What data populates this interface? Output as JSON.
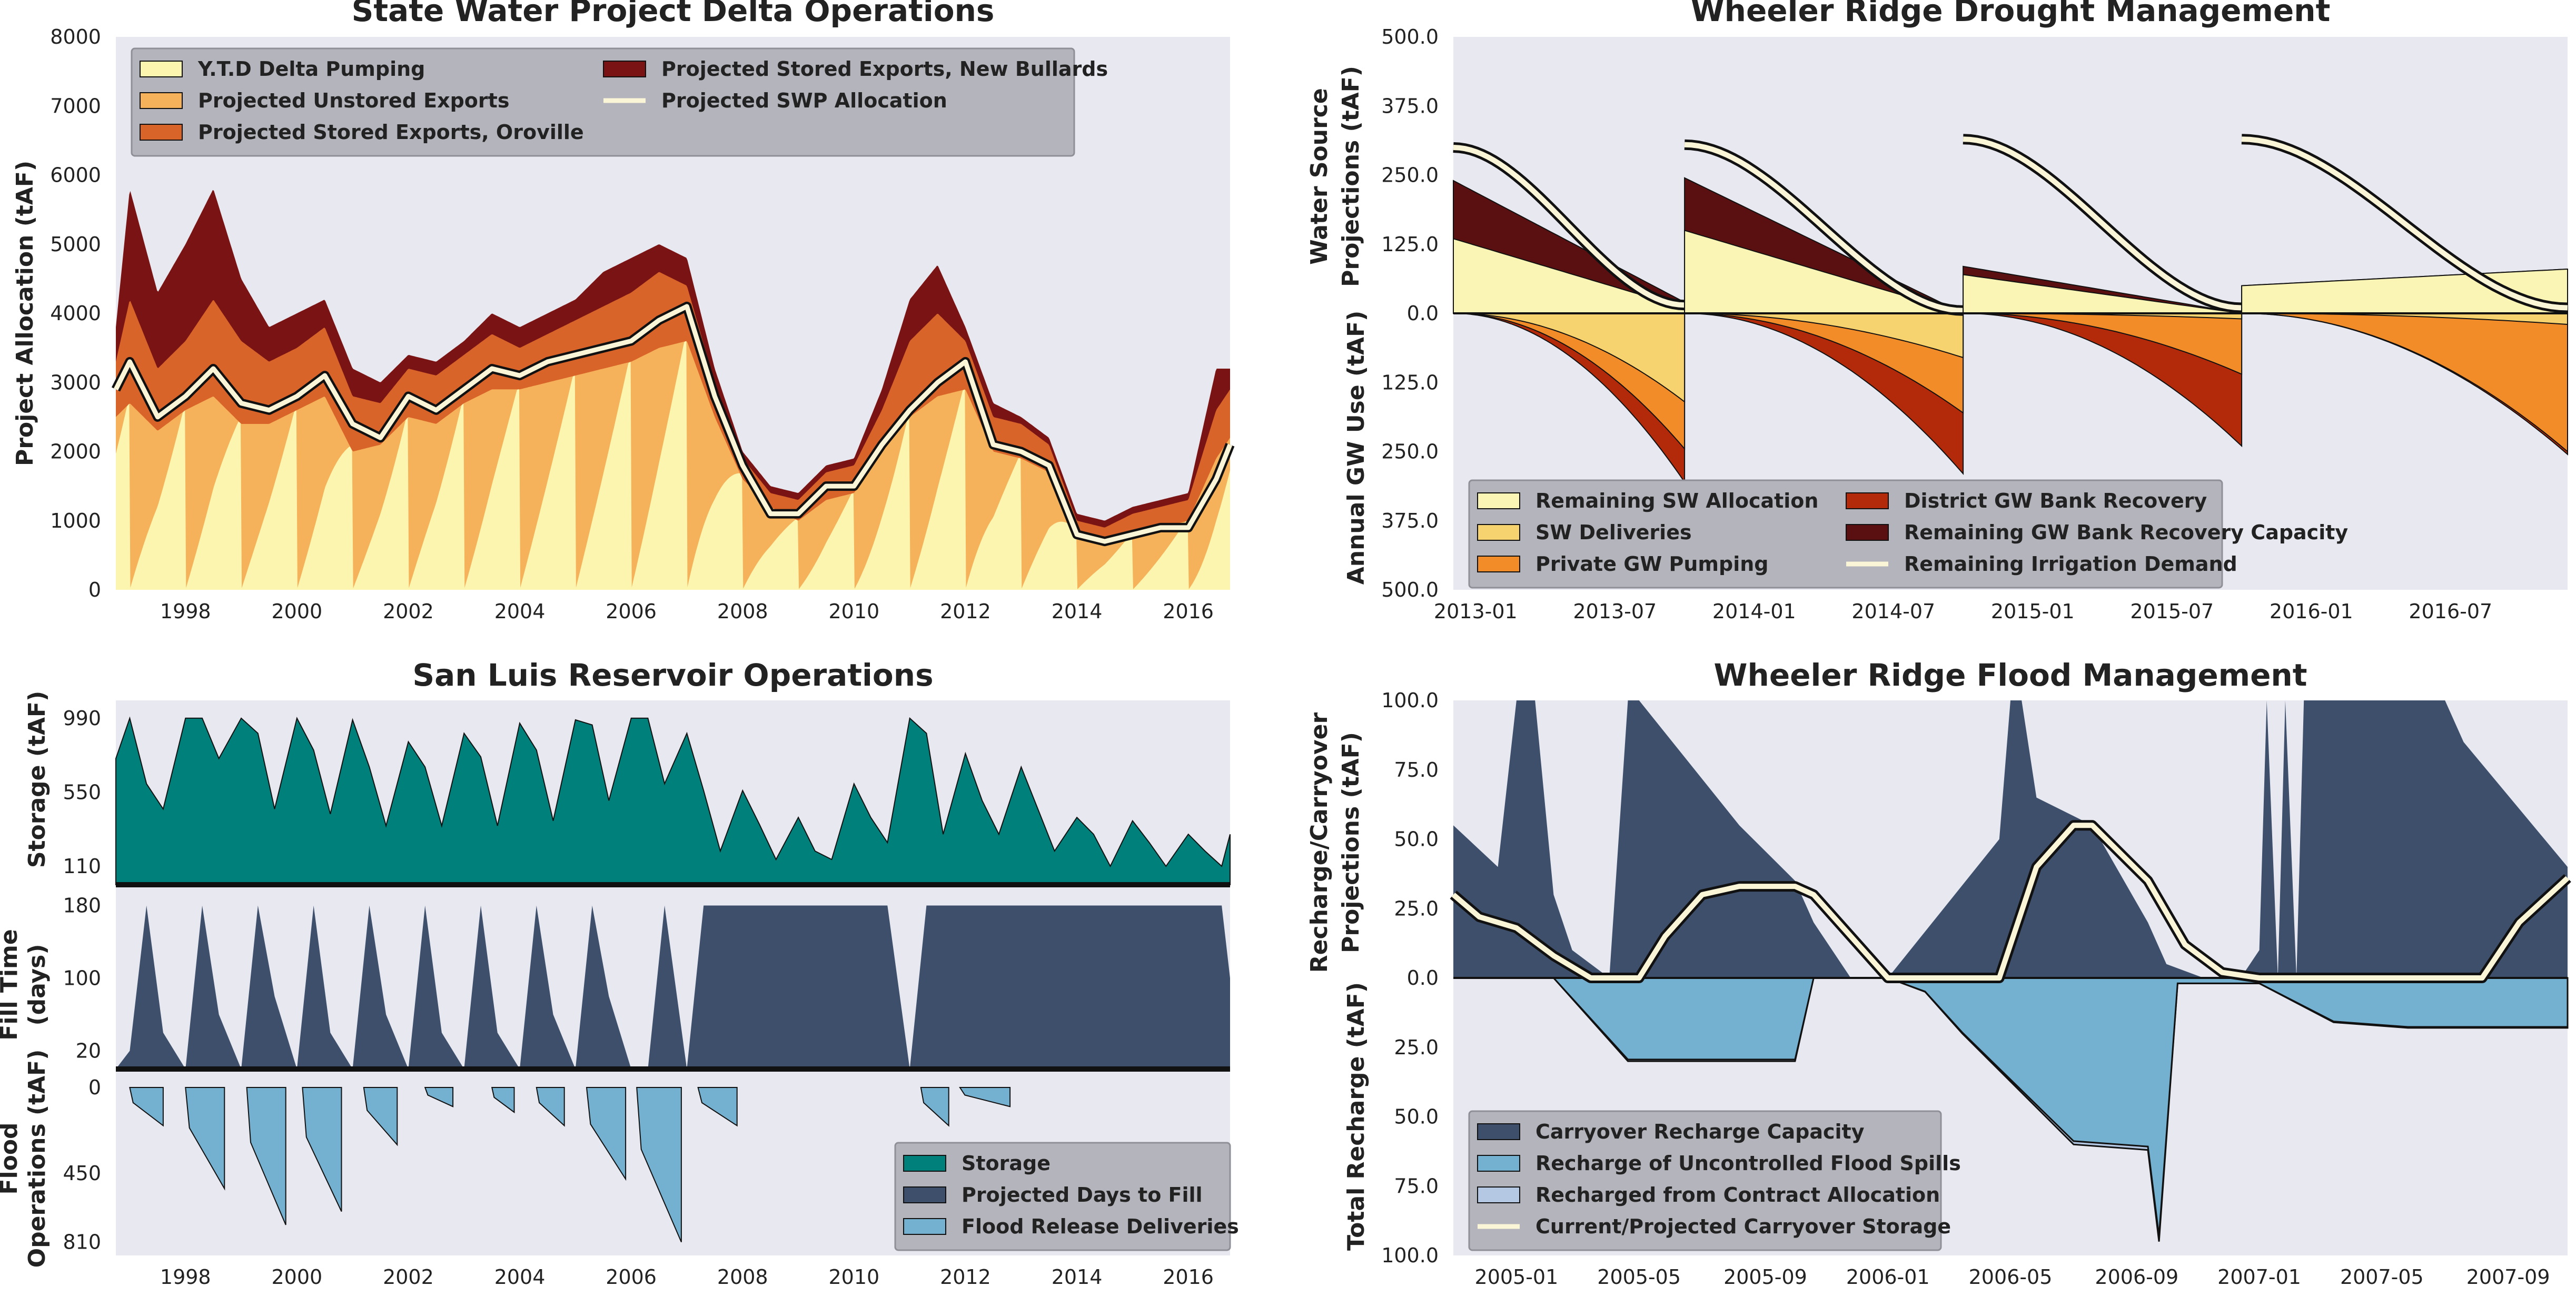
{
  "colors": {
    "bg": "#e8e8f1",
    "ytd_pumping": "#fcf5b0",
    "unstored": "#f5b25a",
    "stored_oroville": "#d9642a",
    "stored_bullards": "#7a1414",
    "allocation": "#fbf5d7",
    "sw_alloc": "#fbf5b5",
    "sw_deliv": "#f7d36f",
    "private_gw": "#f28c28",
    "district_gw": "#b22a0a",
    "gw_bank_cap": "#5a1010",
    "storage": "#00807a",
    "days_to_fill": "#3d4f6b",
    "flood_release": "#74b0d0",
    "carryover_cap": "#3d4f6b",
    "flood_spills": "#74b0d0",
    "contract_recharge": "#b5c8e3"
  },
  "chart_data": [
    {
      "id": "delta",
      "type": "area",
      "title": "State Water Project Delta Operations",
      "ylabel": "Project Allocation (tAF)",
      "ylim": [
        0,
        8000
      ],
      "yticks": [
        "0",
        "1000",
        "2000",
        "3000",
        "4000",
        "5000",
        "6000",
        "7000",
        "8000"
      ],
      "xlim": [
        1996.75,
        2016.75
      ],
      "xticks": [
        "1998",
        "2000",
        "2002",
        "2004",
        "2006",
        "2008",
        "2010",
        "2012",
        "2014",
        "2016"
      ],
      "legend": [
        {
          "label": "Y.T.D Delta Pumping",
          "color": "ytd_pumping"
        },
        {
          "label": "Projected Unstored Exports",
          "color": "unstored"
        },
        {
          "label": "Projected Stored Exports, Oroville",
          "color": "stored_oroville"
        },
        {
          "label": "Projected Stored Exports, New Bullards",
          "color": "stored_bullards"
        },
        {
          "label": "Projected SWP Allocation",
          "color": "allocation"
        }
      ],
      "x": [
        1996.75,
        1997.0,
        1997.5,
        1998.0,
        1998.5,
        1999.0,
        1999.5,
        2000.0,
        2000.5,
        2001.0,
        2001.5,
        2002.0,
        2002.5,
        2003.0,
        2003.5,
        2004.0,
        2004.5,
        2005.0,
        2005.5,
        2006.0,
        2006.5,
        2007.0,
        2007.5,
        2008.0,
        2008.5,
        2009.0,
        2009.5,
        2010.0,
        2010.5,
        2011.0,
        2011.5,
        2012.0,
        2012.5,
        2013.0,
        2013.5,
        2014.0,
        2014.5,
        2015.0,
        2015.5,
        2016.0,
        2016.5,
        2016.75
      ],
      "allocation": [
        2900,
        3300,
        2500,
        2800,
        3200,
        2700,
        2600,
        2800,
        3100,
        2400,
        2200,
        2800,
        2600,
        2900,
        3200,
        3100,
        3300,
        3400,
        3500,
        3600,
        3900,
        4100,
        2800,
        1800,
        1100,
        1100,
        1500,
        1500,
        2100,
        2600,
        3000,
        3300,
        2100,
        2000,
        1800,
        800,
        700,
        800,
        900,
        900,
        1600,
        2100
      ],
      "unstored_top": [
        2500,
        2700,
        2300,
        2600,
        2800,
        2400,
        2400,
        2600,
        2800,
        2000,
        2100,
        2500,
        2400,
        2700,
        2900,
        2900,
        3000,
        3100,
        3200,
        3300,
        3500,
        3600,
        2500,
        1600,
        1200,
        1000,
        1300,
        1400,
        2000,
        2500,
        2800,
        2900,
        2000,
        1900,
        1700,
        800,
        700,
        800,
        900,
        1000,
        1900,
        2200
      ],
      "oroville_top": [
        3300,
        4200,
        3200,
        3600,
        4200,
        3600,
        3300,
        3500,
        3800,
        2800,
        2700,
        3200,
        3100,
        3400,
        3700,
        3500,
        3700,
        3900,
        4100,
        4300,
        4600,
        4400,
        3000,
        1900,
        1400,
        1300,
        1700,
        1800,
        2600,
        3600,
        4000,
        3600,
        2500,
        2400,
        2100,
        1000,
        900,
        1100,
        1200,
        1300,
        2600,
        2900
      ],
      "bullards_top": [
        3800,
        5800,
        4300,
        5000,
        5800,
        4500,
        3800,
        4000,
        4200,
        3200,
        3000,
        3400,
        3300,
        3600,
        4000,
        3800,
        4000,
        4200,
        4600,
        4800,
        5000,
        4800,
        3200,
        2000,
        1500,
        1400,
        1800,
        1900,
        2900,
        4200,
        4700,
        3800,
        2700,
        2500,
        2200,
        1100,
        1000,
        1200,
        1300,
        1400,
        3200,
        3200
      ]
    },
    {
      "id": "drought",
      "type": "area",
      "title": "Wheeler Ridge Drought Management",
      "ylabel_top": [
        "Water Source",
        "Projections (tAF)"
      ],
      "ylabel_bottom": "Annual GW Use (tAF)",
      "yticks_top": [
        "500.0",
        "375.0",
        "250.0",
        "125.0",
        "0.0"
      ],
      "yticks_bottom": [
        "125.0",
        "250.0",
        "375.0",
        "500.0"
      ],
      "ylim": [
        -500,
        500
      ],
      "xlim": [
        2012.92,
        2016.92
      ],
      "xticks": [
        "2013-01",
        "2013-07",
        "2014-01",
        "2014-07",
        "2015-01",
        "2015-07",
        "2016-01",
        "2016-07"
      ],
      "legend": [
        {
          "label": "Remaining SW Allocation",
          "color": "sw_alloc"
        },
        {
          "label": "SW Deliveries",
          "color": "sw_deliv"
        },
        {
          "label": "Private GW Pumping",
          "color": "private_gw"
        },
        {
          "label": "District GW Bank Recovery",
          "color": "district_gw"
        },
        {
          "label": "Remaining GW Bank Recovery Capacity",
          "color": "gw_bank_cap"
        },
        {
          "label": "Remaining Irrigation Demand",
          "color": "allocation"
        }
      ],
      "segments": [
        {
          "x0": 2012.92,
          "x1": 2013.75,
          "sw_top0": 135,
          "sw_top1": 10,
          "bank_top0": 240,
          "bank_top1": 20,
          "deliv_bot1": -160,
          "gw_bot1": -245,
          "dist_bot1": -305,
          "demand0": 300,
          "demand1": 15
        },
        {
          "x0": 2013.75,
          "x1": 2014.75,
          "sw_top0": 150,
          "sw_top1": 0,
          "bank_top0": 245,
          "bank_top1": 0,
          "deliv_bot1": -80,
          "gw_bot1": -180,
          "dist_bot1": -290,
          "demand0": 305,
          "demand1": 5
        },
        {
          "x0": 2014.75,
          "x1": 2015.75,
          "sw_top0": 70,
          "sw_top1": 0,
          "bank_top0": 85,
          "bank_top1": 0,
          "deliv_bot1": -10,
          "gw_bot1": -110,
          "dist_bot1": -240,
          "demand0": 315,
          "demand1": 10
        },
        {
          "x0": 2015.75,
          "x1": 2016.92,
          "sw_top0": 50,
          "sw_top1": 80,
          "bank_top0": 50,
          "bank_top1": 80,
          "deliv_bot1": -20,
          "gw_bot1": -250,
          "dist_bot1": -255,
          "demand0": 315,
          "demand1": 10
        }
      ]
    },
    {
      "id": "sanluis",
      "type": "area",
      "title": "San Luis Reservoir Operations",
      "ylabel_storage": "Storage (tAF)",
      "ylabel_fill": [
        "Fill Time",
        "(days)"
      ],
      "ylabel_flood": [
        "Flood",
        "Operations (tAF)"
      ],
      "yticks_storage": [
        "990",
        "550",
        "110"
      ],
      "yticks_fill": [
        "180",
        "100",
        "20"
      ],
      "yticks_flood": [
        "0",
        "450",
        "810"
      ],
      "xlim": [
        1996.75,
        2016.75
      ],
      "xticks": [
        "1998",
        "2000",
        "2002",
        "2004",
        "2006",
        "2008",
        "2010",
        "2012",
        "2014",
        "2016"
      ],
      "legend": [
        {
          "label": "Storage",
          "color": "storage"
        },
        {
          "label": "Projected Days to Fill",
          "color": "days_to_fill"
        },
        {
          "label": "Flood Release Deliveries",
          "color": "flood_release"
        }
      ],
      "storage_x": [
        1996.75,
        1997.0,
        1997.3,
        1997.6,
        1998.0,
        1998.3,
        1998.6,
        1999.0,
        1999.3,
        1999.6,
        2000.0,
        2000.3,
        2000.6,
        2001.0,
        2001.3,
        2001.6,
        2002.0,
        2002.3,
        2002.6,
        2003.0,
        2003.3,
        2003.6,
        2004.0,
        2004.3,
        2004.6,
        2005.0,
        2005.3,
        2005.6,
        2006.0,
        2006.3,
        2006.6,
        2007.0,
        2007.3,
        2007.6,
        2008.0,
        2008.3,
        2008.6,
        2009.0,
        2009.3,
        2009.6,
        2010.0,
        2010.3,
        2010.6,
        2011.0,
        2011.3,
        2011.6,
        2012.0,
        2012.3,
        2012.6,
        2013.0,
        2013.3,
        2013.6,
        2014.0,
        2014.3,
        2014.6,
        2015.0,
        2015.3,
        2015.6,
        2016.0,
        2016.3,
        2016.6,
        2016.75
      ],
      "storage_values": [
        750,
        990,
        600,
        450,
        990,
        990,
        750,
        990,
        900,
        450,
        990,
        800,
        420,
        980,
        700,
        350,
        850,
        700,
        350,
        900,
        760,
        350,
        960,
        800,
        380,
        980,
        950,
        500,
        990,
        990,
        600,
        900,
        560,
        200,
        560,
        360,
        150,
        400,
        200,
        150,
        600,
        400,
        250,
        990,
        900,
        300,
        780,
        500,
        300,
        700,
        450,
        200,
        400,
        300,
        110,
        380,
        250,
        110,
        300,
        200,
        110,
        300
      ],
      "fill_x": [
        1996.75,
        1997.0,
        1997.3,
        1997.6,
        1998.0,
        1998.3,
        1998.6,
        1999.0,
        1999.3,
        1999.6,
        2000.0,
        2000.3,
        2000.6,
        2001.0,
        2001.3,
        2001.6,
        2002.0,
        2002.3,
        2002.6,
        2003.0,
        2003.3,
        2003.6,
        2004.0,
        2004.3,
        2004.6,
        2005.0,
        2005.3,
        2005.6,
        2006.0,
        2006.3,
        2006.6,
        2007.0,
        2007.3,
        2007.6,
        2008.0,
        2008.3,
        2008.6,
        2009.0,
        2009.3,
        2009.6,
        2010.0,
        2010.3,
        2010.6,
        2011.0,
        2011.3,
        2011.6,
        2012.0,
        2012.3,
        2012.6,
        2013.0,
        2013.3,
        2013.6,
        2014.0,
        2014.3,
        2014.6,
        2015.0,
        2015.3,
        2015.6,
        2016.0,
        2016.3,
        2016.6,
        2016.75
      ],
      "fill_values": [
        0,
        20,
        180,
        40,
        0,
        180,
        60,
        0,
        180,
        80,
        0,
        180,
        40,
        0,
        180,
        60,
        0,
        180,
        40,
        0,
        180,
        40,
        0,
        180,
        60,
        0,
        180,
        80,
        0,
        0,
        180,
        0,
        180,
        180,
        180,
        180,
        180,
        180,
        180,
        180,
        180,
        180,
        180,
        0,
        180,
        180,
        180,
        180,
        180,
        180,
        180,
        180,
        180,
        180,
        180,
        180,
        180,
        180,
        180,
        180,
        180,
        100
      ],
      "flood_events": [
        {
          "x0": 1997.0,
          "x1": 1997.6,
          "depth": 200
        },
        {
          "x0": 1998.0,
          "x1": 1998.7,
          "depth": 530
        },
        {
          "x0": 1999.1,
          "x1": 1999.8,
          "depth": 720
        },
        {
          "x0": 2000.1,
          "x1": 2000.8,
          "depth": 650
        },
        {
          "x0": 2001.2,
          "x1": 2001.8,
          "depth": 300
        },
        {
          "x0": 2002.3,
          "x1": 2002.8,
          "depth": 100
        },
        {
          "x0": 2003.5,
          "x1": 2003.9,
          "depth": 130
        },
        {
          "x0": 2004.3,
          "x1": 2004.8,
          "depth": 200
        },
        {
          "x0": 2005.2,
          "x1": 2005.9,
          "depth": 480
        },
        {
          "x0": 2006.1,
          "x1": 2006.9,
          "depth": 810
        },
        {
          "x0": 2007.2,
          "x1": 2007.9,
          "depth": 200
        },
        {
          "x0": 2011.2,
          "x1": 2011.7,
          "depth": 200
        },
        {
          "x0": 2011.9,
          "x1": 2012.8,
          "depth": 100
        }
      ]
    },
    {
      "id": "flood",
      "type": "area",
      "title": "Wheeler Ridge Flood Management",
      "ylabel_top": [
        "Recharge/Carryover",
        "Projections (tAF)"
      ],
      "ylabel_bottom": "Total Recharge (tAF)",
      "yticks_top": [
        "100.0",
        "75.0",
        "50.0",
        "25.0",
        "0.0"
      ],
      "yticks_bottom": [
        "25.0",
        "50.0",
        "75.0",
        "100.0"
      ],
      "ylim": [
        -100,
        100
      ],
      "xlim": [
        2004.83,
        2007.83
      ],
      "xticks": [
        "2005-01",
        "2005-05",
        "2005-09",
        "2006-01",
        "2006-05",
        "2006-09",
        "2007-01",
        "2007-05",
        "2007-09"
      ],
      "legend": [
        {
          "label": "Carryover Recharge Capacity",
          "color": "carryover_cap"
        },
        {
          "label": "Recharge of Uncontrolled Flood Spills",
          "color": "flood_spills"
        },
        {
          "label": "Recharged from Contract Allocation",
          "color": "contract_recharge"
        },
        {
          "label": "Current/Projected Carryover Storage",
          "color": "allocation"
        }
      ],
      "cap_x": [
        2004.83,
        2004.95,
        2005.0,
        2005.05,
        2005.1,
        2005.15,
        2005.25,
        2005.3,
        2005.33,
        2005.45,
        2005.6,
        2005.75,
        2005.8,
        2005.9,
        2006.0,
        2006.3,
        2006.33,
        2006.36,
        2006.4,
        2006.55,
        2006.7,
        2006.75,
        2006.85,
        2006.95,
        2007.0,
        2007.02,
        2007.05,
        2007.07,
        2007.1,
        2007.12,
        2007.14,
        2007.5,
        2007.55,
        2007.83
      ],
      "cap_values": [
        55,
        40,
        100,
        100,
        30,
        10,
        0,
        100,
        100,
        80,
        55,
        35,
        20,
        0,
        0,
        50,
        100,
        100,
        65,
        55,
        20,
        5,
        0,
        0,
        10,
        100,
        0,
        100,
        0,
        100,
        100,
        100,
        85,
        40
      ],
      "storage_x": [
        2004.83,
        2004.9,
        2005.0,
        2005.1,
        2005.2,
        2005.33,
        2005.4,
        2005.5,
        2005.6,
        2005.75,
        2005.8,
        2006.0,
        2006.2,
        2006.3,
        2006.4,
        2006.5,
        2006.55,
        2006.7,
        2006.8,
        2006.9,
        2007.0,
        2007.5,
        2007.6,
        2007.7,
        2007.83
      ],
      "storage_values": [
        30,
        22,
        18,
        8,
        0,
        0,
        15,
        30,
        33,
        33,
        30,
        0,
        0,
        0,
        40,
        55,
        55,
        35,
        12,
        2,
        0,
        0,
        0,
        20,
        36
      ],
      "spill_bottom_x": [
        2004.83,
        2005.1,
        2005.3,
        2005.6,
        2005.75,
        2005.8,
        2006.0,
        2006.1,
        2006.2,
        2006.5,
        2006.7,
        2006.73,
        2006.78,
        2006.8,
        2006.85,
        2007.0,
        2007.2,
        2007.4,
        2007.83
      ],
      "spill_bottom_values": [
        0,
        0,
        -30,
        -30,
        -30,
        0,
        0,
        -5,
        -20,
        -60,
        -62,
        -95,
        -2,
        -2,
        -2,
        -2,
        -16,
        -18,
        -18
      ]
    }
  ]
}
